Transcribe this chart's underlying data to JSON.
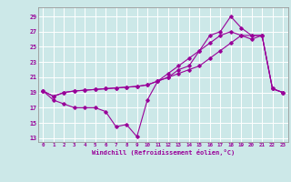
{
  "xlabel": "Windchill (Refroidissement éolien,°C)",
  "bg_color": "#cce8e8",
  "grid_color": "#ffffff",
  "line_color": "#990099",
  "x_ticks": [
    0,
    1,
    2,
    3,
    4,
    5,
    6,
    7,
    8,
    9,
    10,
    11,
    12,
    13,
    14,
    15,
    16,
    17,
    18,
    19,
    20,
    21,
    22,
    23
  ],
  "y_ticks": [
    13,
    15,
    17,
    19,
    21,
    23,
    25,
    27,
    29
  ],
  "ylim": [
    12.5,
    30.2
  ],
  "xlim": [
    -0.5,
    23.5
  ],
  "series1": [
    19.2,
    18.0,
    17.5,
    17.0,
    17.0,
    17.0,
    16.5,
    14.5,
    14.8,
    13.2,
    18.0,
    20.5,
    21.0,
    22.0,
    22.5,
    24.5,
    26.5,
    27.0,
    29.0,
    27.5,
    26.5,
    26.5,
    19.5,
    19.0
  ],
  "series2": [
    19.2,
    18.5,
    19.0,
    19.2,
    19.3,
    19.4,
    19.5,
    19.6,
    19.7,
    19.8,
    20.0,
    20.5,
    21.0,
    21.5,
    22.0,
    22.5,
    23.5,
    24.5,
    25.5,
    26.5,
    26.5,
    26.5,
    19.5,
    19.0
  ],
  "series3": [
    19.2,
    18.5,
    19.0,
    19.2,
    19.3,
    19.4,
    19.5,
    19.6,
    19.7,
    19.8,
    20.0,
    20.5,
    21.5,
    22.5,
    23.5,
    24.5,
    25.5,
    26.5,
    27.0,
    26.5,
    26.0,
    26.5,
    19.5,
    19.0
  ]
}
